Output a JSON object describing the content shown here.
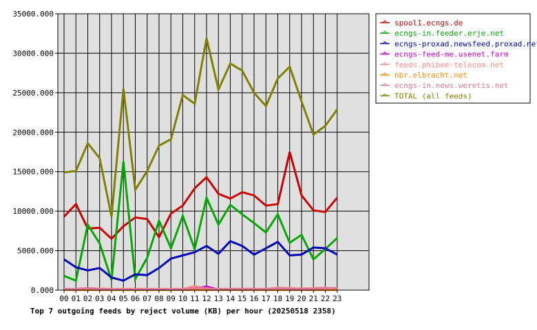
{
  "chart_data": {
    "type": "line",
    "title": "Top 7 outgoing feeds by reject volume (KB) per hour (20250518 2358)",
    "xlabel": "",
    "ylabel": "",
    "categories": [
      "00",
      "01",
      "02",
      "03",
      "04",
      "05",
      "06",
      "07",
      "08",
      "09",
      "10",
      "11",
      "12",
      "13",
      "14",
      "15",
      "16",
      "17",
      "18",
      "19",
      "20",
      "21",
      "22",
      "23"
    ],
    "ylim": [
      0,
      35000
    ],
    "yticks": [
      "0.000",
      "5000.000",
      "10000.000",
      "15000.000",
      "20000.000",
      "25000.000",
      "30000.000",
      "35000.000"
    ],
    "ytick_values": [
      0,
      5000,
      10000,
      15000,
      20000,
      25000,
      30000,
      35000
    ],
    "grid": true,
    "legend_position": "right",
    "series": [
      {
        "name": "spool1.ecngs.de",
        "color": "#cc0000",
        "values": [
          9300,
          10900,
          7800,
          7900,
          6500,
          8100,
          9200,
          9000,
          6700,
          9700,
          10700,
          12900,
          14300,
          12200,
          11600,
          12400,
          12000,
          10700,
          10900,
          17500,
          12000,
          10100,
          9900,
          11700
        ]
      },
      {
        "name": "ecngs-in.feeder.erje.net",
        "color": "#00aa00",
        "values": [
          1800,
          1200,
          8300,
          5900,
          1300,
          16300,
          1400,
          4100,
          8800,
          5300,
          9400,
          5200,
          11700,
          8300,
          10800,
          9600,
          8500,
          7300,
          9600,
          6000,
          7000,
          3900,
          5200,
          6600
        ]
      },
      {
        "name": "ecngs-proxad.newsfeed.proxad.net",
        "color": "#0000bb",
        "values": [
          3900,
          2900,
          2500,
          2800,
          1600,
          1200,
          2000,
          1900,
          2800,
          4000,
          4400,
          4800,
          5600,
          4600,
          6200,
          5600,
          4500,
          5300,
          6100,
          4400,
          4500,
          5400,
          5300,
          4500
        ]
      },
      {
        "name": "ecngs-feed-me.usenet.farm",
        "color": "#cc00cc",
        "values": [
          50,
          50,
          50,
          50,
          50,
          50,
          50,
          80,
          80,
          100,
          100,
          200,
          450,
          80,
          80,
          80,
          80,
          80,
          150,
          150,
          100,
          100,
          100,
          100
        ]
      },
      {
        "name": "feeds.phibee-telecom.net",
        "color": "#ff8888",
        "values": [
          100,
          100,
          250,
          200,
          150,
          150,
          150,
          150,
          150,
          150,
          150,
          500,
          200,
          150,
          150,
          150,
          150,
          150,
          300,
          250,
          200,
          250,
          300,
          250
        ]
      },
      {
        "name": "nbr.elbracht.net",
        "color": "#ff8800",
        "values": [
          20,
          20,
          20,
          20,
          20,
          20,
          20,
          20,
          20,
          20,
          20,
          20,
          20,
          20,
          20,
          20,
          20,
          20,
          20,
          20,
          20,
          20,
          20,
          20
        ]
      },
      {
        "name": "ecngs-in.news.weretis.net",
        "color": "#dd7799",
        "values": [
          150,
          150,
          250,
          150,
          100,
          100,
          100,
          100,
          100,
          100,
          100,
          300,
          250,
          100,
          150,
          150,
          150,
          100,
          250,
          200,
          150,
          200,
          250,
          250
        ]
      },
      {
        "name": "TOTAL (all feeds)",
        "color": "#808000",
        "values": [
          14900,
          15100,
          18600,
          16700,
          9300,
          25500,
          12700,
          15100,
          18300,
          19100,
          24700,
          23600,
          31900,
          25400,
          28700,
          27800,
          25000,
          23300,
          26800,
          28300,
          23900,
          19700,
          20800,
          22900
        ]
      }
    ]
  }
}
